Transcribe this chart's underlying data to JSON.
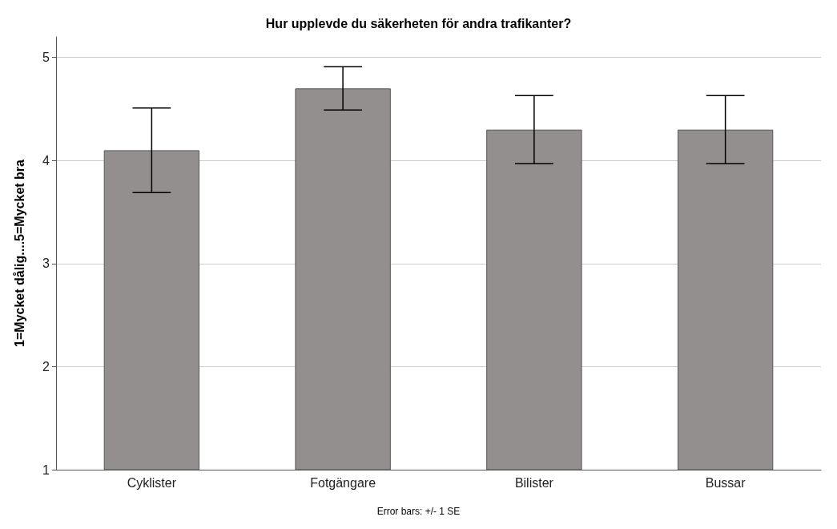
{
  "chart_data": {
    "type": "bar",
    "title": "Hur upplevde du säkerheten för andra trafikanter?",
    "ylabel": "1=Mycket dålig....5=Mycket bra",
    "categories": [
      "Cyklister",
      "Fotgängare",
      "Bilister",
      "Bussar"
    ],
    "values": [
      4.1,
      4.7,
      4.3,
      4.3
    ],
    "errors": [
      [
        3.69,
        4.51
      ],
      [
        4.49,
        4.91
      ],
      [
        3.97,
        4.63
      ],
      [
        3.97,
        4.63
      ]
    ],
    "color": "#938f8e",
    "ylim": [
      1,
      5.2
    ],
    "yticks": [
      1,
      2,
      3,
      4,
      5
    ],
    "grid": "y",
    "annotations": [
      "Error bars: +/- 1 SE"
    ]
  }
}
